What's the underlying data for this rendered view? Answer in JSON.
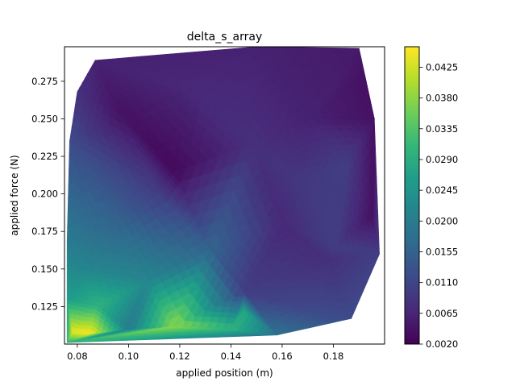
{
  "chart_data": {
    "type": "tricontourf",
    "title": "delta_s_array",
    "xlabel": "applied position (m)",
    "ylabel": "applied force (N)",
    "xlim": [
      0.075,
      0.2
    ],
    "ylim": [
      0.1,
      0.298
    ],
    "x_ticks": [
      0.08,
      0.1,
      0.12,
      0.14,
      0.16,
      0.18
    ],
    "x_tick_labels": [
      "0.08",
      "0.10",
      "0.12",
      "0.14",
      "0.16",
      "0.18"
    ],
    "y_ticks": [
      0.125,
      0.15,
      0.175,
      0.2,
      0.225,
      0.25,
      0.275
    ],
    "y_tick_labels": [
      "0.125",
      "0.150",
      "0.175",
      "0.200",
      "0.225",
      "0.250",
      "0.275"
    ],
    "colorbar": {
      "colormap": "viridis",
      "range": [
        0.002,
        0.0455
      ],
      "ticks": [
        0.002,
        0.0065,
        0.011,
        0.0155,
        0.02,
        0.0245,
        0.029,
        0.0335,
        0.038,
        0.0425
      ],
      "tick_labels": [
        "0.0020",
        "0.0065",
        "0.0110",
        "0.0155",
        "0.0200",
        "0.0245",
        "0.0290",
        "0.0335",
        "0.0380",
        "0.0425"
      ]
    },
    "points": [
      {
        "x": 0.076,
        "y": 0.101,
        "v": 0.03
      },
      {
        "x": 0.076,
        "y": 0.13,
        "v": 0.026
      },
      {
        "x": 0.076,
        "y": 0.168,
        "v": 0.02
      },
      {
        "x": 0.077,
        "y": 0.235,
        "v": 0.012
      },
      {
        "x": 0.078,
        "y": 0.108,
        "v": 0.044
      },
      {
        "x": 0.08,
        "y": 0.268,
        "v": 0.008
      },
      {
        "x": 0.082,
        "y": 0.15,
        "v": 0.022
      },
      {
        "x": 0.085,
        "y": 0.107,
        "v": 0.045
      },
      {
        "x": 0.087,
        "y": 0.289,
        "v": 0.006
      },
      {
        "x": 0.088,
        "y": 0.125,
        "v": 0.03
      },
      {
        "x": 0.095,
        "y": 0.18,
        "v": 0.016
      },
      {
        "x": 0.098,
        "y": 0.252,
        "v": 0.004
      },
      {
        "x": 0.1,
        "y": 0.11,
        "v": 0.02
      },
      {
        "x": 0.108,
        "y": 0.142,
        "v": 0.022
      },
      {
        "x": 0.112,
        "y": 0.2,
        "v": 0.01
      },
      {
        "x": 0.118,
        "y": 0.112,
        "v": 0.038
      },
      {
        "x": 0.118,
        "y": 0.215,
        "v": 0.003
      },
      {
        "x": 0.125,
        "y": 0.27,
        "v": 0.007
      },
      {
        "x": 0.132,
        "y": 0.163,
        "v": 0.016
      },
      {
        "x": 0.14,
        "y": 0.11,
        "v": 0.03
      },
      {
        "x": 0.145,
        "y": 0.122,
        "v": 0.028
      },
      {
        "x": 0.145,
        "y": 0.135,
        "v": 0.01
      },
      {
        "x": 0.148,
        "y": 0.232,
        "v": 0.008
      },
      {
        "x": 0.15,
        "y": 0.298,
        "v": 0.006
      },
      {
        "x": 0.158,
        "y": 0.106,
        "v": 0.018
      },
      {
        "x": 0.16,
        "y": 0.18,
        "v": 0.007
      },
      {
        "x": 0.165,
        "y": 0.21,
        "v": 0.009
      },
      {
        "x": 0.172,
        "y": 0.25,
        "v": 0.006
      },
      {
        "x": 0.175,
        "y": 0.12,
        "v": 0.012
      },
      {
        "x": 0.178,
        "y": 0.155,
        "v": 0.008
      },
      {
        "x": 0.18,
        "y": 0.165,
        "v": 0.01
      },
      {
        "x": 0.185,
        "y": 0.22,
        "v": 0.01
      },
      {
        "x": 0.187,
        "y": 0.117,
        "v": 0.012
      },
      {
        "x": 0.19,
        "y": 0.297,
        "v": 0.005
      },
      {
        "x": 0.192,
        "y": 0.28,
        "v": 0.004
      },
      {
        "x": 0.195,
        "y": 0.185,
        "v": 0.004
      },
      {
        "x": 0.196,
        "y": 0.25,
        "v": 0.004
      },
      {
        "x": 0.198,
        "y": 0.16,
        "v": 0.01
      }
    ]
  }
}
